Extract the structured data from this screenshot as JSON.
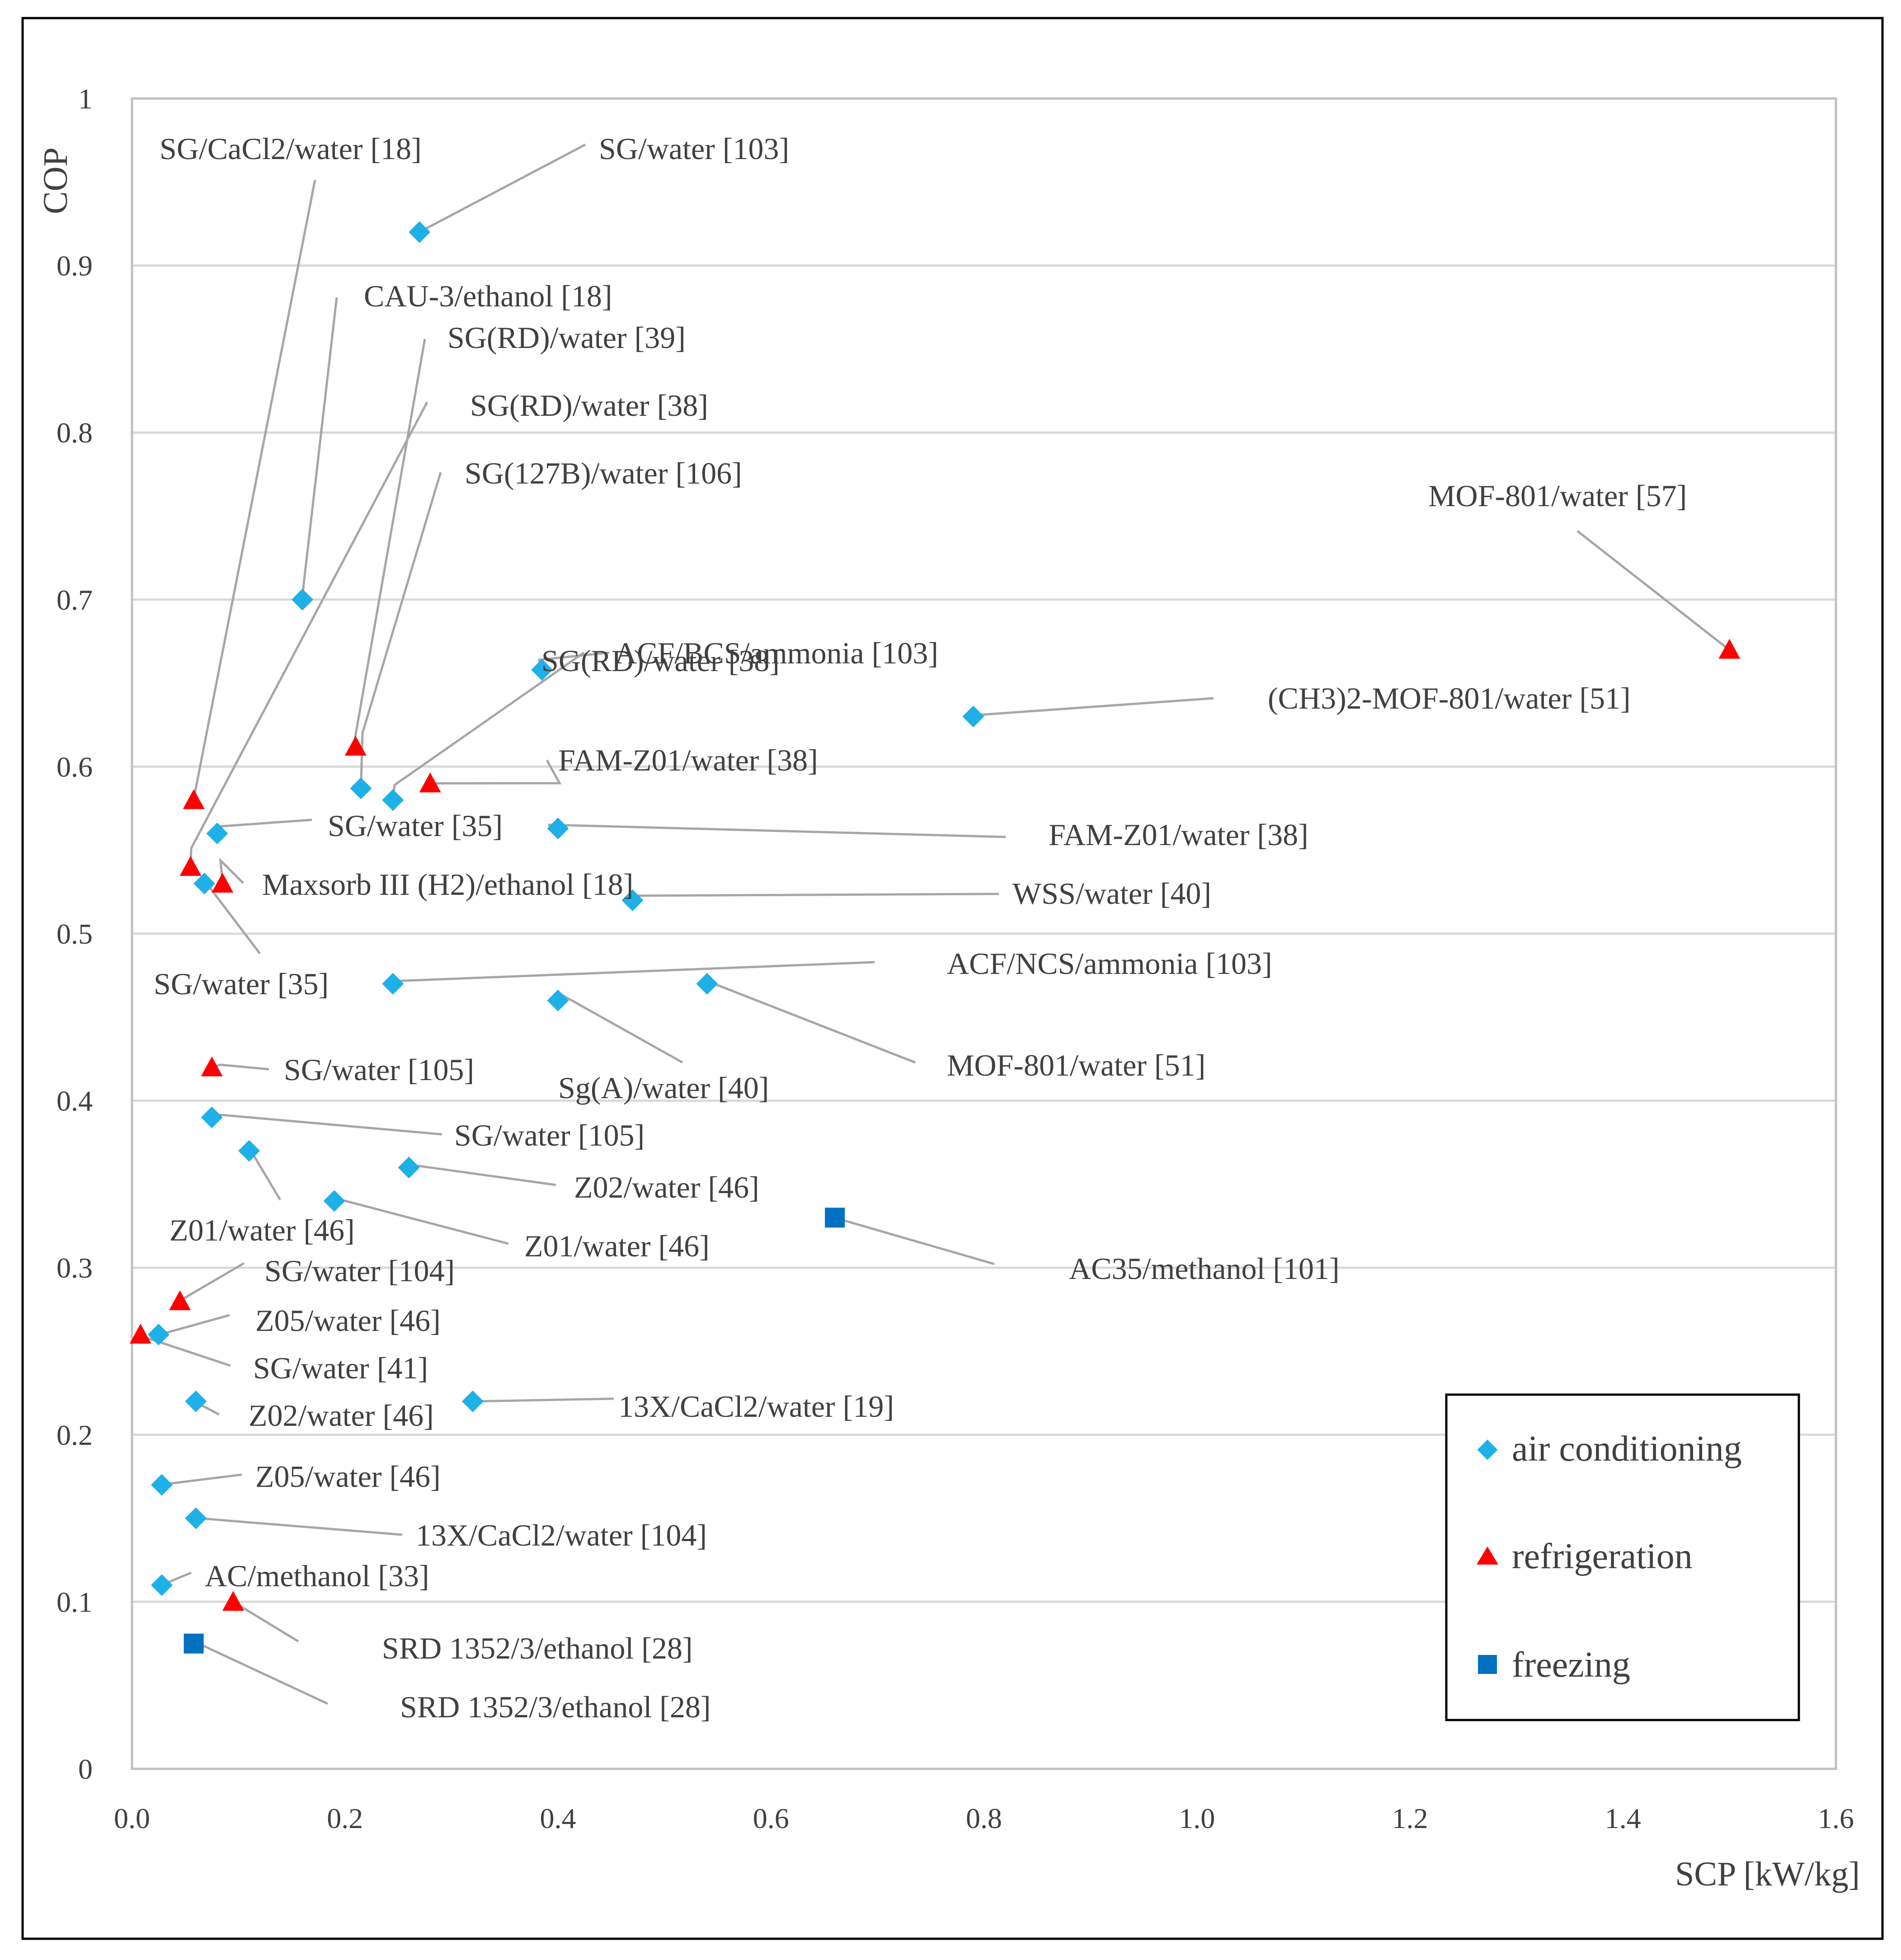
{
  "chart_data": {
    "type": "scatter",
    "title": "",
    "xlabel": "SCP [kW/kg]",
    "ylabel": "COP",
    "xlim": [
      0,
      1.6
    ],
    "ylim": [
      0,
      1
    ],
    "x_ticks": [
      "0.0",
      "0.2",
      "0.4",
      "0.6",
      "0.8",
      "1.0",
      "1.2",
      "1.4",
      "1.6"
    ],
    "y_ticks": [
      "0",
      "0.1",
      "0.2",
      "0.3",
      "0.4",
      "0.5",
      "0.6",
      "0.7",
      "0.8",
      "0.9",
      "1"
    ],
    "grid": true,
    "legend_position": "bottom-right",
    "series": [
      {
        "name": "air conditioning",
        "marker": "diamond",
        "color": "#1fb0e8",
        "points": [
          {
            "x": 0.27,
            "y": 0.92,
            "label": "SG/water [103]"
          },
          {
            "x": 0.16,
            "y": 0.7,
            "label": "CAU-3/ethanol [18]"
          },
          {
            "x": 0.385,
            "y": 0.658,
            "label": "SG(RD)/water [38]"
          },
          {
            "x": 0.79,
            "y": 0.63,
            "label": "(CH3)2-MOF-801/water [51]"
          },
          {
            "x": 0.215,
            "y": 0.587,
            "label": "SG(127B)/water [106]"
          },
          {
            "x": 0.245,
            "y": 0.58,
            "label": "ACF/BCS/ammonia [103]"
          },
          {
            "x": 0.08,
            "y": 0.56,
            "label": "SG/water [35]"
          },
          {
            "x": 0.4,
            "y": 0.563,
            "label": "FAM-Z01/water [38]"
          },
          {
            "x": 0.068,
            "y": 0.53,
            "label": "SG/water [35]"
          },
          {
            "x": 0.47,
            "y": 0.52,
            "label": "WSS/water [40]"
          },
          {
            "x": 0.245,
            "y": 0.47,
            "label": "ACF/NCS/ammonia [103]"
          },
          {
            "x": 0.54,
            "y": 0.47,
            "label": "MOF-801/water [51]"
          },
          {
            "x": 0.4,
            "y": 0.46,
            "label": "Sg(A)/water [40]"
          },
          {
            "x": 0.075,
            "y": 0.39,
            "label": "SG/water [105]"
          },
          {
            "x": 0.11,
            "y": 0.37,
            "label": "Z01/water [46]"
          },
          {
            "x": 0.26,
            "y": 0.36,
            "label": "Z02/water [46]"
          },
          {
            "x": 0.19,
            "y": 0.34,
            "label": "Z01/water [46]"
          },
          {
            "x": 0.025,
            "y": 0.26,
            "label": "Z05/water [46]"
          },
          {
            "x": 0.06,
            "y": 0.22,
            "label": "Z02/water [46]"
          },
          {
            "x": 0.32,
            "y": 0.22,
            "label": "13X/CaCl2/water [19]"
          },
          {
            "x": 0.028,
            "y": 0.17,
            "label": "Z05/water [46]"
          },
          {
            "x": 0.06,
            "y": 0.15,
            "label": "13X/CaCl2/water [104]"
          },
          {
            "x": 0.028,
            "y": 0.11,
            "label": "AC/methanol [33]"
          }
        ]
      },
      {
        "name": "refrigeration",
        "marker": "triangle",
        "color": "#ff0000",
        "points": [
          {
            "x": 1.5,
            "y": 0.67,
            "label": "MOF-801/water [57]"
          },
          {
            "x": 0.21,
            "y": 0.612,
            "label": "SG(RD)/water [39]"
          },
          {
            "x": 0.058,
            "y": 0.58,
            "label": "SG/CaCl2/water [18]"
          },
          {
            "x": 0.28,
            "y": 0.59,
            "label": "FAM-Z01/water [38]"
          },
          {
            "x": 0.055,
            "y": 0.54,
            "label": "SG(RD)/water [38]"
          },
          {
            "x": 0.085,
            "y": 0.53,
            "label": "Maxsorb III (H2)/ethanol [18]"
          },
          {
            "x": 0.075,
            "y": 0.42,
            "label": "SG/water [105]"
          },
          {
            "x": 0.045,
            "y": 0.28,
            "label": "SG/water [104]"
          },
          {
            "x": 0.008,
            "y": 0.26,
            "label": "SG/water [41]"
          },
          {
            "x": 0.095,
            "y": 0.1,
            "label": "SRD 1352/3/ethanol [28]"
          }
        ]
      },
      {
        "name": "freezing",
        "marker": "square",
        "color": "#0070c0",
        "points": [
          {
            "x": 0.66,
            "y": 0.33,
            "label": "AC35/methanol [101]"
          },
          {
            "x": 0.058,
            "y": 0.075,
            "label": "SRD 1352/3/ethanol [28]"
          }
        ]
      }
    ]
  }
}
